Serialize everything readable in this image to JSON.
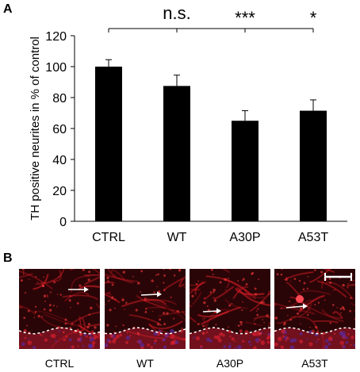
{
  "panel_labels": {
    "a": "A",
    "b": "B"
  },
  "chart_data": {
    "type": "bar",
    "title": "",
    "xlabel": "",
    "ylabel": "TH positive neurites in % of control",
    "categories": [
      "CTRL",
      "WT",
      "A30P",
      "A53T"
    ],
    "values": [
      100,
      87.5,
      65,
      71.5
    ],
    "errors": [
      4.5,
      7,
      6.5,
      7
    ],
    "ylim": [
      0,
      120
    ],
    "yticks": [
      0,
      20,
      40,
      60,
      80,
      100,
      120
    ],
    "bar_color": "#000000",
    "grid": false,
    "significance": [
      {
        "label": "n.s.",
        "target": "WT"
      },
      {
        "label": "***",
        "target": "A30P"
      },
      {
        "label": "*",
        "target": "A53T"
      }
    ]
  },
  "micrographs": {
    "labels": [
      "CTRL",
      "WT",
      "A30P",
      "A53T"
    ],
    "neurite_color": "#e0202a",
    "background_color": "#2a0507",
    "dashed_line_color": "#ffffff",
    "arrow_color": "#ffffff",
    "scale_bar_color": "#ffffff"
  }
}
